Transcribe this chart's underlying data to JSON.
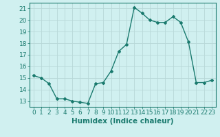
{
  "x": [
    0,
    1,
    2,
    3,
    4,
    5,
    6,
    7,
    8,
    9,
    10,
    11,
    12,
    13,
    14,
    15,
    16,
    17,
    18,
    19,
    20,
    21,
    22,
    23
  ],
  "y": [
    15.2,
    15.0,
    14.5,
    13.2,
    13.2,
    13.0,
    12.9,
    12.8,
    14.5,
    14.6,
    15.6,
    17.3,
    17.9,
    21.1,
    20.6,
    20.0,
    19.8,
    19.8,
    20.3,
    19.8,
    18.1,
    14.6,
    14.6,
    14.8
  ],
  "line_color": "#1a7a6e",
  "marker": "D",
  "marker_size": 2.0,
  "bg_color": "#d0f0f0",
  "grid_color": "#b8d8d8",
  "axis_color": "#1a7a6e",
  "xlabel": "Humidex (Indice chaleur)",
  "xlim": [
    -0.5,
    23.5
  ],
  "ylim": [
    12.5,
    21.5
  ],
  "yticks": [
    13,
    14,
    15,
    16,
    17,
    18,
    19,
    20,
    21
  ],
  "xticks": [
    0,
    1,
    2,
    3,
    4,
    5,
    6,
    7,
    8,
    9,
    10,
    11,
    12,
    13,
    14,
    15,
    16,
    17,
    18,
    19,
    20,
    21,
    22,
    23
  ],
  "xlabel_fontsize": 7.5,
  "tick_fontsize": 6.5
}
